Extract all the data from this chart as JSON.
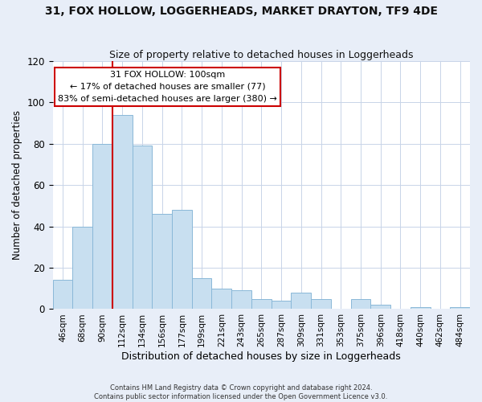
{
  "title1": "31, FOX HOLLOW, LOGGERHEADS, MARKET DRAYTON, TF9 4DE",
  "title2": "Size of property relative to detached houses in Loggerheads",
  "xlabel": "Distribution of detached houses by size in Loggerheads",
  "ylabel": "Number of detached properties",
  "bar_labels": [
    "46sqm",
    "68sqm",
    "90sqm",
    "112sqm",
    "134sqm",
    "156sqm",
    "177sqm",
    "199sqm",
    "221sqm",
    "243sqm",
    "265sqm",
    "287sqm",
    "309sqm",
    "331sqm",
    "353sqm",
    "375sqm",
    "396sqm",
    "418sqm",
    "440sqm",
    "462sqm",
    "484sqm"
  ],
  "bar_values": [
    14,
    40,
    80,
    94,
    79,
    46,
    48,
    15,
    10,
    9,
    5,
    4,
    8,
    5,
    0,
    5,
    2,
    0,
    1,
    0,
    1
  ],
  "bar_color": "#c8dff0",
  "bar_edge_color": "#8ab8d8",
  "vline_x_index": 2.5,
  "vline_color": "#cc0000",
  "annotation_title": "31 FOX HOLLOW: 100sqm",
  "annotation_line1": "← 17% of detached houses are smaller (77)",
  "annotation_line2": "83% of semi-detached houses are larger (380) →",
  "annotation_box_color": "#ffffff",
  "annotation_box_edge": "#cc0000",
  "ylim": [
    0,
    120
  ],
  "yticks": [
    0,
    20,
    40,
    60,
    80,
    100,
    120
  ],
  "footer1": "Contains HM Land Registry data © Crown copyright and database right 2024.",
  "footer2": "Contains public sector information licensed under the Open Government Licence v3.0.",
  "background_color": "#e8eef8",
  "plot_background": "#ffffff",
  "grid_color": "#c8d4e8"
}
